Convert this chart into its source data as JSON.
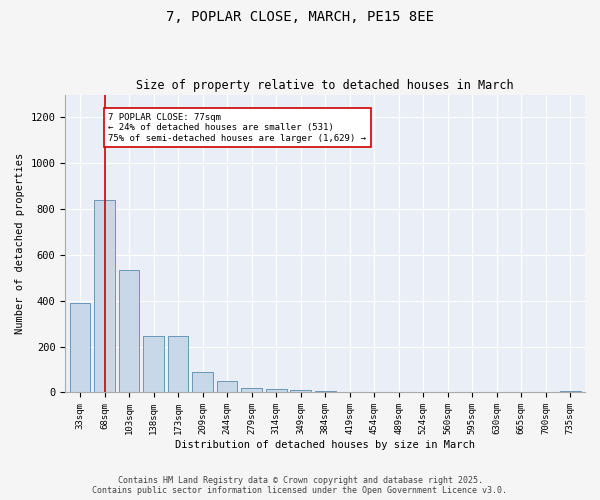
{
  "title_line1": "7, POPLAR CLOSE, MARCH, PE15 8EE",
  "title_line2": "Size of property relative to detached houses in March",
  "xlabel": "Distribution of detached houses by size in March",
  "ylabel": "Number of detached properties",
  "categories": [
    "33sqm",
    "68sqm",
    "103sqm",
    "138sqm",
    "173sqm",
    "209sqm",
    "244sqm",
    "279sqm",
    "314sqm",
    "349sqm",
    "384sqm",
    "419sqm",
    "454sqm",
    "489sqm",
    "524sqm",
    "560sqm",
    "595sqm",
    "630sqm",
    "665sqm",
    "700sqm",
    "735sqm"
  ],
  "values": [
    390,
    840,
    535,
    248,
    248,
    88,
    52,
    18,
    14,
    12,
    8,
    0,
    0,
    0,
    0,
    0,
    0,
    0,
    0,
    0,
    8
  ],
  "bar_color": "#c8d8e8",
  "bar_edge_color": "#5a8ab0",
  "vline_x": 1.0,
  "vline_color": "#cc0000",
  "annotation_text": "7 POPLAR CLOSE: 77sqm\n← 24% of detached houses are smaller (531)\n75% of semi-detached houses are larger (1,629) →",
  "annotation_box_color": "#ffffff",
  "annotation_box_edge": "#cc0000",
  "ylim": [
    0,
    1300
  ],
  "yticks": [
    0,
    200,
    400,
    600,
    800,
    1000,
    1200
  ],
  "background_color": "#eaeff7",
  "fig_background": "#f5f5f5",
  "grid_color": "#ffffff",
  "footer_line1": "Contains HM Land Registry data © Crown copyright and database right 2025.",
  "footer_line2": "Contains public sector information licensed under the Open Government Licence v3.0."
}
